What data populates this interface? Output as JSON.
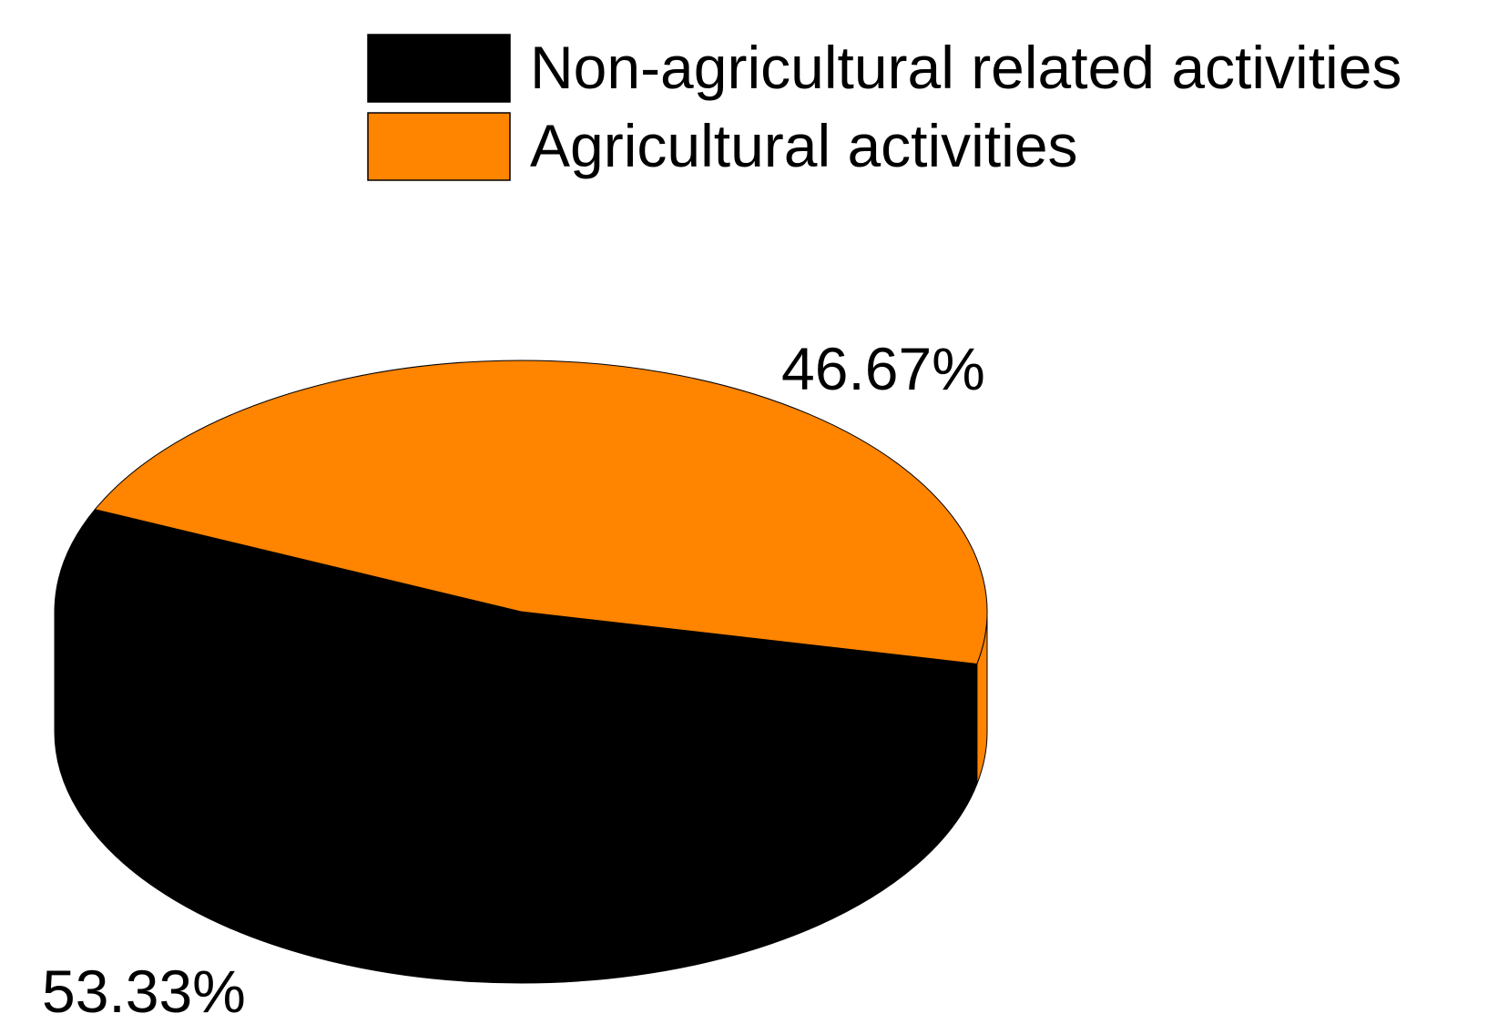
{
  "chart_data": {
    "type": "pie",
    "style": "3d",
    "title": "",
    "series": [
      {
        "name": "Non-agricultural related activities",
        "percent": 53.33,
        "label": "53.33%",
        "color": "#000000"
      },
      {
        "name": "Agricultural activities",
        "percent": 46.67,
        "label": "46.67%",
        "color": "#FF8400"
      }
    ],
    "legend_position": "top-right"
  }
}
